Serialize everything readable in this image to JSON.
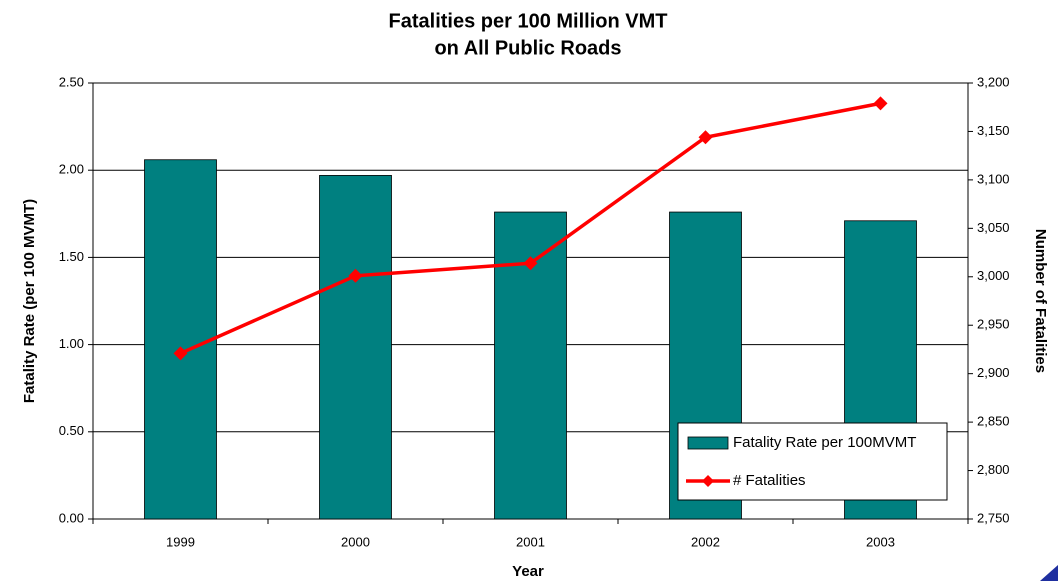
{
  "chart_data": {
    "type": "bar_line",
    "title": [
      "Fatalities per 100 Million VMT",
      "on All Public Roads"
    ],
    "x_label": "Year",
    "y_label": "Fatality Rate (per 100 MVMT)",
    "y2_label": "Number of Fatalities",
    "categories": [
      "1999",
      "2000",
      "2001",
      "2002",
      "2003"
    ],
    "series": [
      {
        "name": "Fatality Rate per 100MVMT",
        "type": "bar",
        "color": "#008080",
        "values": [
          2.06,
          1.97,
          1.76,
          1.76,
          1.71
        ]
      },
      {
        "name": "# Fatalities",
        "type": "line",
        "color": "#ff0000",
        "axis": "y2",
        "values": [
          2921,
          3001,
          3014,
          3144,
          3179
        ]
      }
    ],
    "ylim": [
      0,
      2.5
    ],
    "yticks": [
      {
        "value": 0,
        "label": "0.00"
      },
      {
        "value": 0.5,
        "label": "0.50"
      },
      {
        "value": 1,
        "label": "1.00"
      },
      {
        "value": 1.5,
        "label": "1.50"
      },
      {
        "value": 2,
        "label": "2.00"
      },
      {
        "value": 2.5,
        "label": "2.50"
      }
    ],
    "y2lim": [
      2750,
      3200
    ],
    "y2ticks": [
      {
        "value": 2750,
        "label": "2,750"
      },
      {
        "value": 2800,
        "label": "2,800"
      },
      {
        "value": 2850,
        "label": "2,850"
      },
      {
        "value": 2900,
        "label": "2,900"
      },
      {
        "value": 2950,
        "label": "2,950"
      },
      {
        "value": 3000,
        "label": "3,000"
      },
      {
        "value": 3050,
        "label": "3,050"
      },
      {
        "value": 3100,
        "label": "3,100"
      },
      {
        "value": 3150,
        "label": "3,150"
      },
      {
        "value": 3200,
        "label": "3,200"
      }
    ],
    "grid": true,
    "legend": "lower right"
  }
}
